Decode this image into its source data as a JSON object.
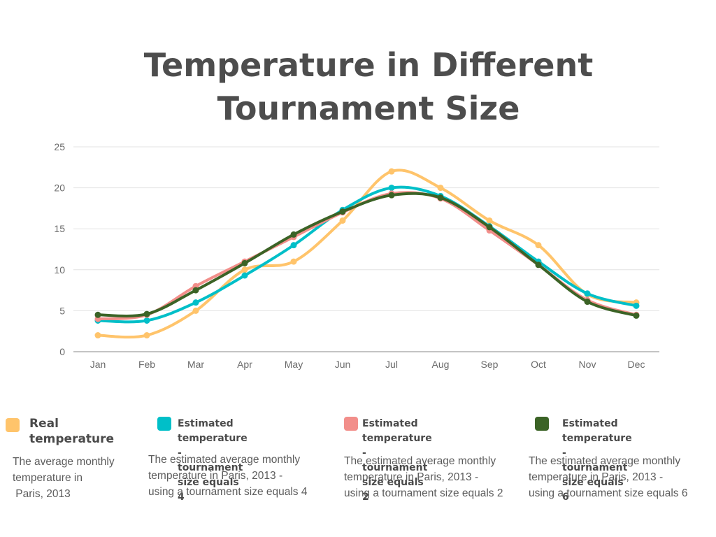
{
  "chart_data": {
    "type": "line",
    "title": "Temperature in Different Tournament Size",
    "xlabel": "",
    "ylabel": "",
    "categories": [
      "Jan",
      "Feb",
      "Mar",
      "Apr",
      "May",
      "Jun",
      "Jul",
      "Aug",
      "Sep",
      "Oct",
      "Nov",
      "Dec"
    ],
    "ylim": [
      0,
      25
    ],
    "yticks": [
      "0",
      "5",
      "10",
      "15",
      "20",
      "25"
    ],
    "grid": true,
    "legend_position": "bottom",
    "series": [
      {
        "name": "Real temperature",
        "color": "#FFC46B",
        "values": [
          2,
          2,
          5,
          10,
          11,
          16,
          22,
          20,
          16,
          13,
          7,
          6
        ]
      },
      {
        "name": "Estimated temperature - tournament size equals 4",
        "color": "#00BFC8",
        "values": [
          3.8,
          3.8,
          6,
          9.3,
          13,
          17.3,
          20,
          19,
          15.3,
          11,
          7.1,
          5.6
        ]
      },
      {
        "name": "Estimated temperature - tournament size equals 2",
        "color": "#F28E8A",
        "values": [
          4,
          4.5,
          8,
          11,
          14,
          17,
          19.3,
          18.7,
          14.8,
          10.6,
          6.3,
          4.5
        ]
      },
      {
        "name": "Estimated temperature - tournament size equals 6",
        "color": "#3B6326",
        "values": [
          4.5,
          4.6,
          7.5,
          10.8,
          14.3,
          17.1,
          19.1,
          18.8,
          15.2,
          10.6,
          6.1,
          4.4
        ]
      }
    ]
  },
  "title_lines": [
    "Temperature in Different",
    "Tournament Size"
  ],
  "legend": [
    {
      "label_lines": [
        "Real temperature"
      ],
      "color": "#FFC46B",
      "desc_lines": [
        "The average monthly",
        "temperature in",
        " Paris, 2013"
      ]
    },
    {
      "label_lines": [
        "Estimated temperature -",
        "tournament size equals 4"
      ],
      "color": "#00BFC8",
      "desc_lines": [
        "The estimated average monthly",
        "temperature in Paris, 2013 -",
        "using a tournament size equals 4"
      ]
    },
    {
      "label_lines": [
        "Estimated temperature -",
        "tournament size equals 2"
      ],
      "color": "#F28E8A",
      "desc_lines": [
        "The estimated average monthly",
        "temperature in Paris, 2013 -",
        "using a tournament size equals 2"
      ]
    },
    {
      "label_lines": [
        "Estimated temperature -",
        "tournament size equals 6"
      ],
      "color": "#3B6326",
      "desc_lines": [
        "The estimated average monthly",
        "temperature in Paris, 2013 -",
        "using a tournament size equals 6"
      ]
    }
  ]
}
